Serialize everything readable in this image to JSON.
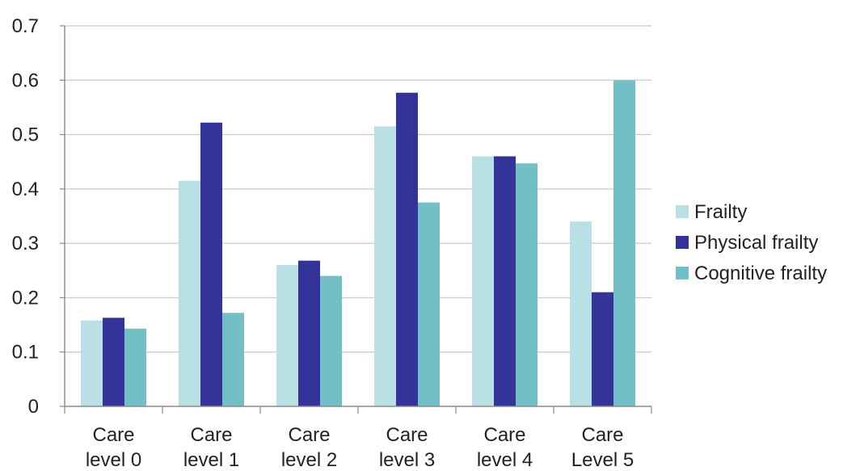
{
  "chart_data": {
    "type": "bar",
    "categories": [
      [
        "Care",
        "level 0"
      ],
      [
        "Care",
        "level 1"
      ],
      [
        "Care",
        "level 2"
      ],
      [
        "Care",
        "level 3"
      ],
      [
        "Care",
        "level 4"
      ],
      [
        "Care",
        "Level 5"
      ]
    ],
    "series": [
      {
        "name": "Frailty",
        "color": "#b9e0e4",
        "values": [
          0.158,
          0.415,
          0.26,
          0.515,
          0.46,
          0.34
        ]
      },
      {
        "name": "Physical frailty",
        "color": "#33339a",
        "values": [
          0.163,
          0.522,
          0.268,
          0.577,
          0.46,
          0.21
        ]
      },
      {
        "name": "Cognitive frailty",
        "color": "#72bfc5",
        "values": [
          0.143,
          0.172,
          0.24,
          0.375,
          0.447,
          0.6
        ]
      }
    ],
    "yticks": [
      "0",
      "0.1",
      "0.2",
      "0.3",
      "0.4",
      "0.5",
      "0.6",
      "0.7"
    ],
    "ylim": [
      0,
      0.7
    ],
    "grid": true,
    "legend": "right",
    "title": "",
    "xlabel": "",
    "ylabel": ""
  }
}
